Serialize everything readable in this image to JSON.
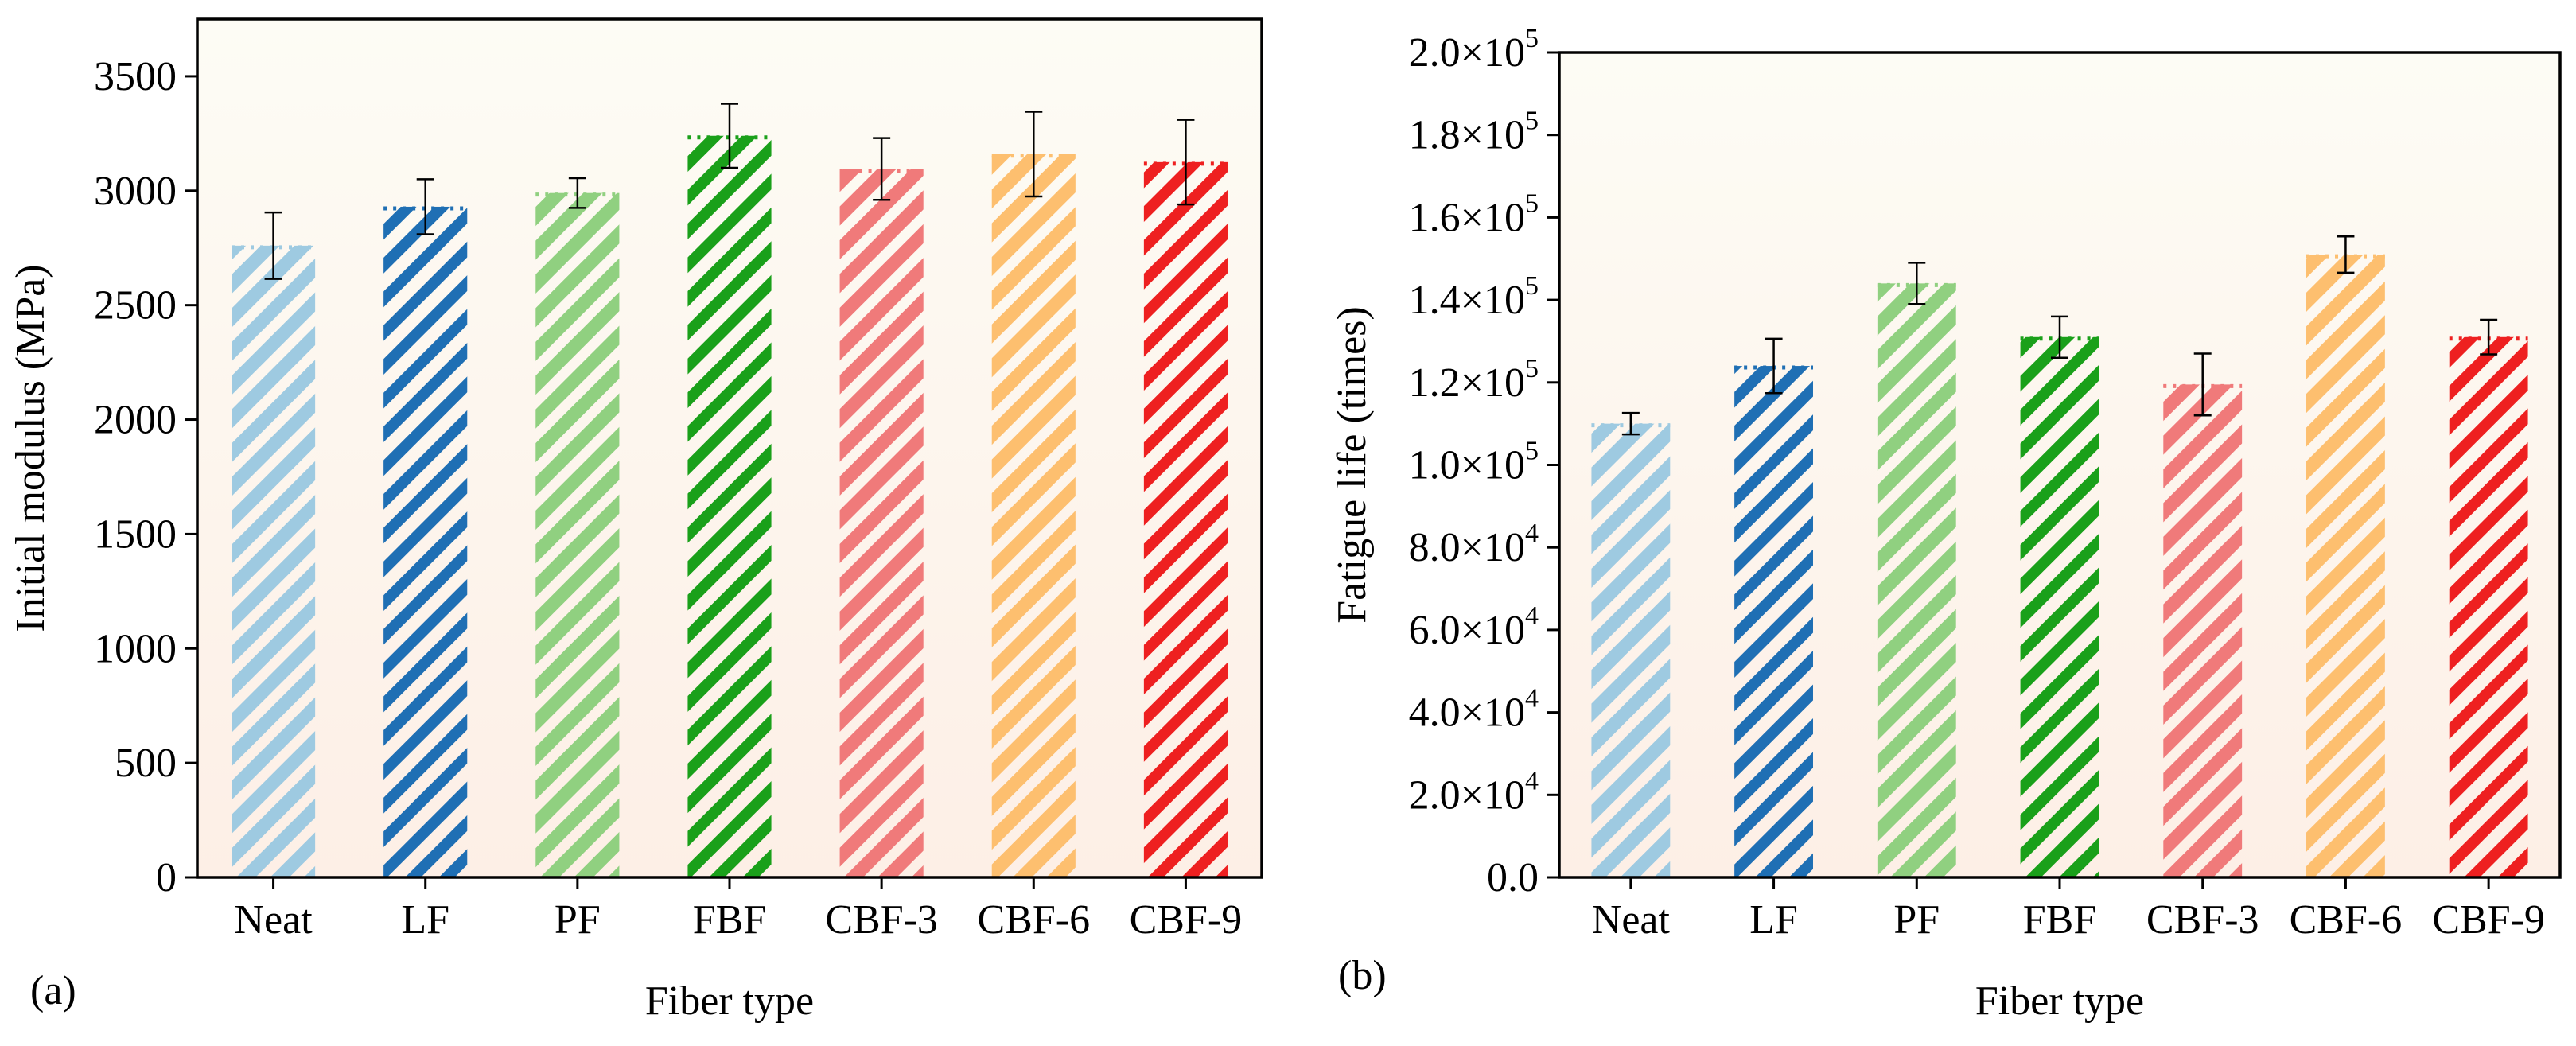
{
  "chart_data": [
    {
      "panel_label": "(a)",
      "type": "bar",
      "title": "",
      "xlabel": "Fiber type",
      "ylabel": "Initial modulus (MPa)",
      "ylim": [
        0,
        3750
      ],
      "yticks": [
        {
          "value": 0,
          "label": "0"
        },
        {
          "value": 500,
          "label": "500"
        },
        {
          "value": 1000,
          "label": "1000"
        },
        {
          "value": 1500,
          "label": "1500"
        },
        {
          "value": 2000,
          "label": "2000"
        },
        {
          "value": 2500,
          "label": "2500"
        },
        {
          "value": 3000,
          "label": "3000"
        },
        {
          "value": 3500,
          "label": "3500"
        }
      ],
      "grid": false,
      "categories": [
        "Neat",
        "LF",
        "PF",
        "FBF",
        "CBF-3",
        "CBF-6",
        "CBF-9"
      ],
      "values": [
        2760,
        2930,
        2990,
        3240,
        3095,
        3160,
        3125
      ],
      "errors": [
        145,
        120,
        65,
        140,
        135,
        185,
        185
      ],
      "colors": [
        "#9ecae1",
        "#1f6fb4",
        "#90d080",
        "#1aa01a",
        "#f07a7a",
        "#fdbf6f",
        "#ee2020"
      ],
      "stripe_width": [
        "wide",
        "narrow",
        "wide",
        "narrow",
        "wide",
        "wide",
        "narrow"
      ]
    },
    {
      "panel_label": "(b)",
      "type": "bar",
      "title": "",
      "xlabel": "Fiber type",
      "ylabel": "Fatigue life (times)",
      "ylim": [
        0,
        200000
      ],
      "yticks": [
        {
          "value": 0,
          "mant": "0.0",
          "exp": ""
        },
        {
          "value": 20000,
          "mant": "2.0×10",
          "exp": "4"
        },
        {
          "value": 40000,
          "mant": "4.0×10",
          "exp": "4"
        },
        {
          "value": 60000,
          "mant": "6.0×10",
          "exp": "4"
        },
        {
          "value": 80000,
          "mant": "8.0×10",
          "exp": "4"
        },
        {
          "value": 100000,
          "mant": "1.0×10",
          "exp": "5"
        },
        {
          "value": 120000,
          "mant": "1.2×10",
          "exp": "5"
        },
        {
          "value": 140000,
          "mant": "1.4×10",
          "exp": "5"
        },
        {
          "value": 160000,
          "mant": "1.6×10",
          "exp": "5"
        },
        {
          "value": 180000,
          "mant": "1.8×10",
          "exp": "5"
        },
        {
          "value": 200000,
          "mant": "2.0×10",
          "exp": "5"
        }
      ],
      "grid": false,
      "categories": [
        "Neat",
        "LF",
        "PF",
        "FBF",
        "CBF-3",
        "CBF-6",
        "CBF-9"
      ],
      "values": [
        110000,
        124000,
        144000,
        131000,
        119500,
        151000,
        131000
      ],
      "errors": [
        2600,
        6600,
        5000,
        5000,
        7500,
        4400,
        4200
      ],
      "colors": [
        "#9ecae1",
        "#1f6fb4",
        "#90d080",
        "#1aa01a",
        "#f07a7a",
        "#fdbf6f",
        "#ee2020"
      ],
      "stripe_width": [
        "wide",
        "narrow",
        "wide",
        "narrow",
        "wide",
        "wide",
        "narrow"
      ]
    }
  ]
}
